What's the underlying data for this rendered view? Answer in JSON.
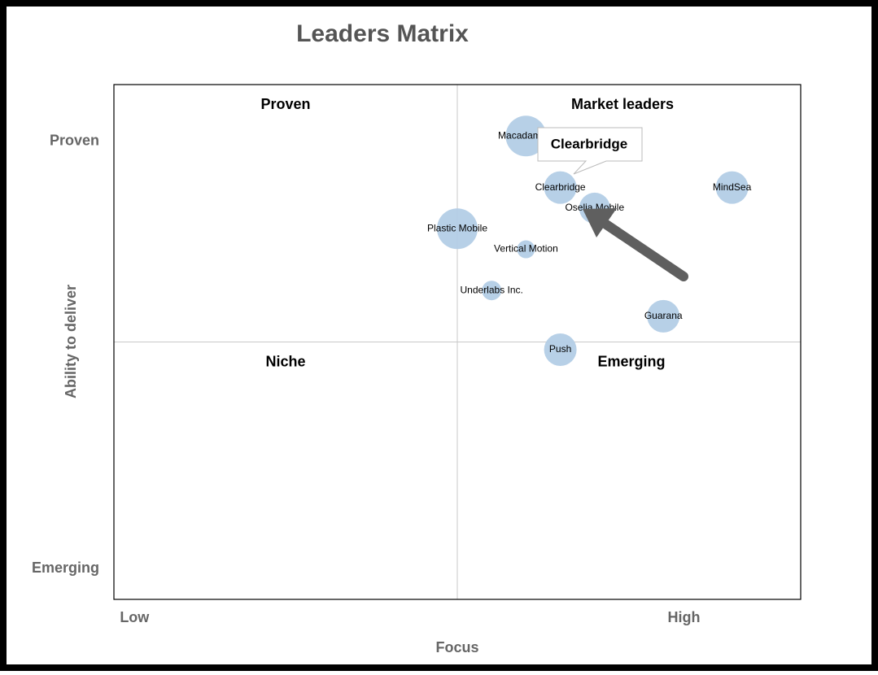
{
  "chart_data": {
    "type": "bubble",
    "title": "Leaders Matrix",
    "x_label": "Focus",
    "y_label": "Ability to deliver",
    "xlim": [
      0,
      100
    ],
    "ylim": [
      0,
      100
    ],
    "xticks": [
      {
        "value": 3,
        "label": "Low"
      },
      {
        "value": 83,
        "label": "High"
      }
    ],
    "yticks": [
      {
        "value": 6,
        "label": "Emerging"
      },
      {
        "value": 89,
        "label": "Proven"
      }
    ],
    "quadrant_labels": {
      "top_left": "Proven",
      "top_right": "Market leaders",
      "bottom_left": "Niche",
      "bottom_right": "Emerging"
    },
    "color": "#b3cde6",
    "names": [
      "Macadamian",
      "Clearbridge",
      "Oselia Mobile",
      "MindSea",
      "Plastic Mobile",
      "Vertical Motion",
      "Underlabs Inc.",
      "Guarana",
      "Push"
    ],
    "x": [
      60,
      65,
      70,
      90,
      50,
      60,
      55,
      80,
      65
    ],
    "values": [
      90,
      80,
      76,
      80,
      72,
      68,
      60,
      55,
      48.5
    ],
    "sizes": [
      25,
      20,
      19,
      20,
      25,
      11,
      12,
      20,
      20
    ],
    "tooltip": "Clearbridge"
  }
}
